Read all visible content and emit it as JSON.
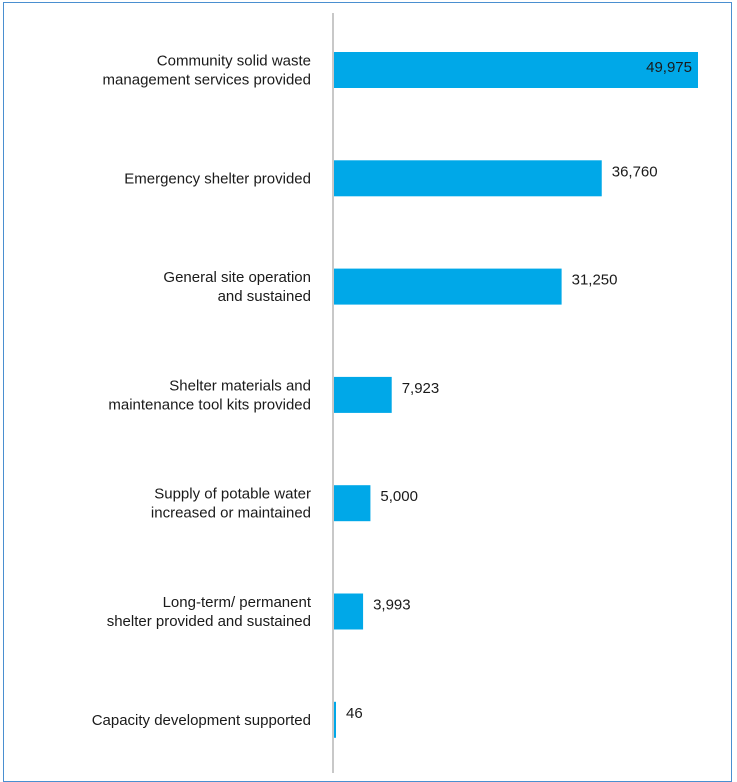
{
  "colors": {
    "bar": "#00a8e8",
    "axis": "#c8c8c8",
    "frame": "#4a8fd0",
    "text": "#1a1a1a"
  },
  "chart_data": {
    "type": "bar",
    "orientation": "horizontal",
    "categories": [
      [
        "Community solid waste",
        "management services provided"
      ],
      [
        "Emergency shelter provided"
      ],
      [
        "General site operation",
        "and sustained"
      ],
      [
        "Shelter materials and",
        "maintenance tool kits provided"
      ],
      [
        "Supply of potable water",
        "increased or maintained"
      ],
      [
        "Long-term/ permanent",
        "shelter provided and sustained"
      ],
      [
        "Capacity development supported"
      ]
    ],
    "values": [
      49975,
      36760,
      31250,
      7923,
      5000,
      3993,
      46
    ],
    "value_labels": [
      "49,975",
      "36,760",
      "31,250",
      "7,923",
      "5,000",
      "3,993",
      "46"
    ],
    "xlim": [
      0,
      49975
    ],
    "grid": false,
    "legend": "none"
  }
}
